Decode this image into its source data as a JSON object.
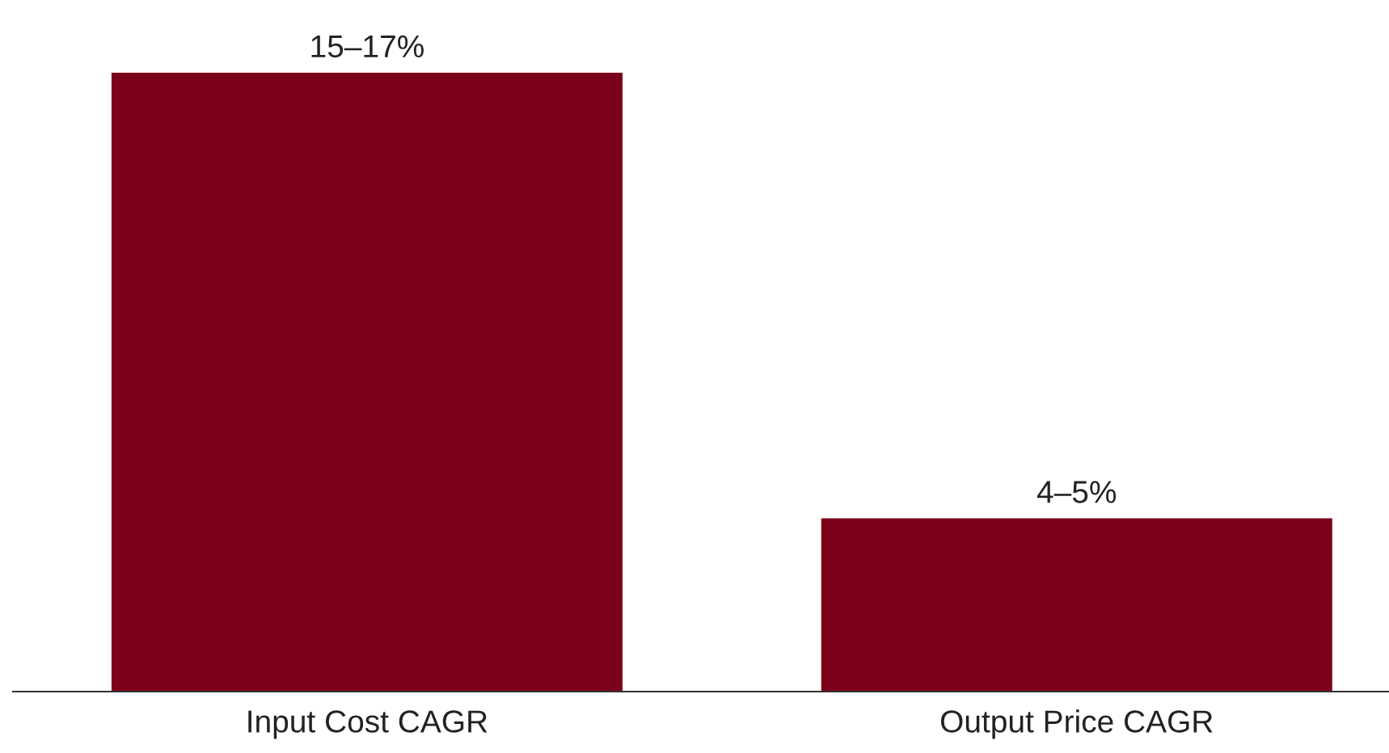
{
  "chart_data": {
    "type": "bar",
    "categories": [
      "Input Cost CAGR",
      "Output Price CAGR"
    ],
    "values": [
      15,
      4.2
    ],
    "value_labels": [
      "15–17%",
      "4–5%"
    ],
    "color": "#7b0019",
    "grid": false,
    "legend": false
  }
}
